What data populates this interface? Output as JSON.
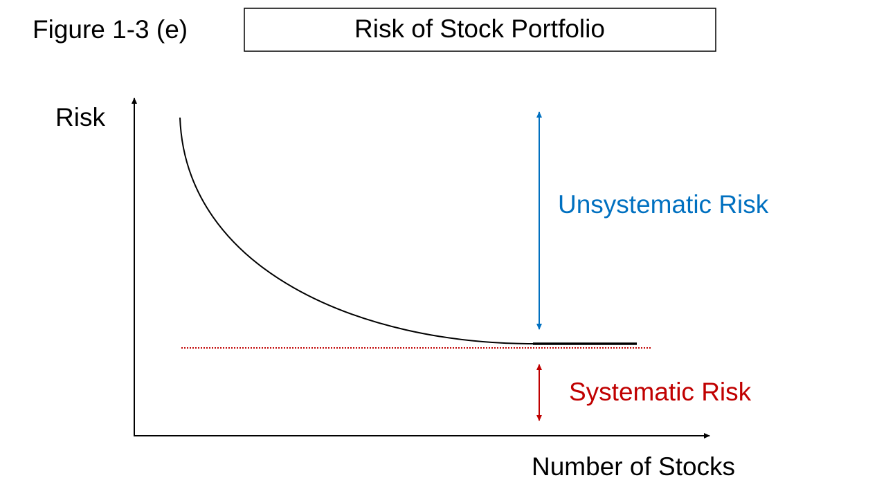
{
  "header": {
    "figure": "Figure 1-3 (e)",
    "title": "Risk of Stock Portfolio"
  },
  "axes": {
    "y_label": "Risk",
    "x_label": "Number of Stocks"
  },
  "annotations": {
    "unsystematic": "Unsystematic Risk",
    "systematic": "Systematic Risk"
  }
}
